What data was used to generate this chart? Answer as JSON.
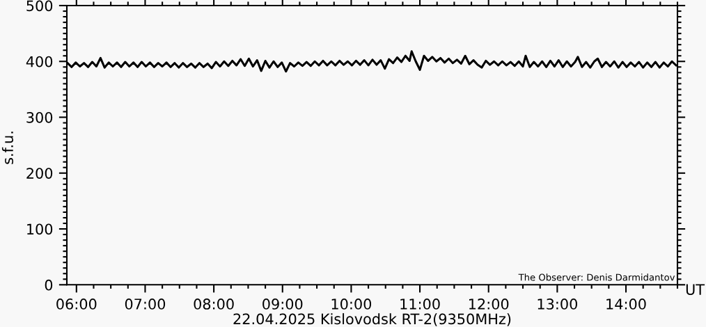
{
  "chart_data": {
    "type": "line",
    "title": "22.04.2025 Kislovodsk RT-2(9350MHz)",
    "xlabel": "UT",
    "ylabel": "s.f.u.",
    "annotations": [
      "The Observer: Denis Darmidantov"
    ],
    "x": [
      5.87,
      5.93,
      5.99,
      6.05,
      6.11,
      6.17,
      6.23,
      6.29,
      6.35,
      6.41,
      6.47,
      6.53,
      6.59,
      6.65,
      6.71,
      6.77,
      6.83,
      6.89,
      6.95,
      7.01,
      7.07,
      7.13,
      7.19,
      7.25,
      7.31,
      7.37,
      7.43,
      7.49,
      7.55,
      7.61,
      7.67,
      7.73,
      7.79,
      7.85,
      7.91,
      7.97,
      8.03,
      8.09,
      8.15,
      8.21,
      8.27,
      8.33,
      8.39,
      8.45,
      8.51,
      8.57,
      8.63,
      8.69,
      8.75,
      8.81,
      8.87,
      8.93,
      8.99,
      9.05,
      9.11,
      9.17,
      9.23,
      9.29,
      9.35,
      9.41,
      9.47,
      9.53,
      9.59,
      9.65,
      9.71,
      9.77,
      9.83,
      9.89,
      9.95,
      10.01,
      10.07,
      10.13,
      10.19,
      10.25,
      10.31,
      10.37,
      10.43,
      10.49,
      10.55,
      10.61,
      10.67,
      10.73,
      10.79,
      10.85,
      10.88,
      10.94,
      11.0,
      11.06,
      11.12,
      11.18,
      11.24,
      11.3,
      11.36,
      11.42,
      11.48,
      11.54,
      11.6,
      11.66,
      11.72,
      11.78,
      11.84,
      11.9,
      11.96,
      12.02,
      12.08,
      12.14,
      12.2,
      12.26,
      12.32,
      12.38,
      12.44,
      12.5,
      12.54,
      12.6,
      12.66,
      12.72,
      12.78,
      12.84,
      12.9,
      12.96,
      13.02,
      13.08,
      13.14,
      13.2,
      13.26,
      13.3,
      13.36,
      13.42,
      13.48,
      13.54,
      13.59,
      13.65,
      13.71,
      13.77,
      13.83,
      13.89,
      13.95,
      14.01,
      14.07,
      14.13,
      14.19,
      14.25,
      14.31,
      14.37,
      14.43,
      14.49,
      14.55,
      14.61,
      14.67,
      14.73
    ],
    "values": [
      397,
      390,
      398,
      391,
      397,
      390,
      399,
      391,
      406,
      389,
      398,
      391,
      398,
      390,
      399,
      391,
      398,
      390,
      399,
      391,
      398,
      390,
      397,
      391,
      398,
      390,
      397,
      389,
      397,
      390,
      396,
      389,
      397,
      390,
      396,
      388,
      399,
      391,
      400,
      392,
      401,
      393,
      404,
      392,
      405,
      391,
      402,
      383,
      401,
      389,
      400,
      390,
      398,
      382,
      397,
      391,
      398,
      392,
      399,
      392,
      400,
      393,
      401,
      393,
      400,
      393,
      401,
      394,
      400,
      393,
      401,
      394,
      402,
      393,
      403,
      394,
      402,
      387,
      404,
      397,
      407,
      399,
      410,
      401,
      418,
      400,
      385,
      410,
      401,
      408,
      400,
      406,
      398,
      405,
      397,
      403,
      396,
      410,
      395,
      402,
      394,
      389,
      401,
      394,
      400,
      393,
      400,
      393,
      399,
      392,
      400,
      391,
      410,
      390,
      399,
      391,
      400,
      390,
      401,
      391,
      402,
      390,
      400,
      391,
      399,
      408,
      390,
      399,
      389,
      400,
      405,
      390,
      399,
      391,
      400,
      389,
      399,
      390,
      398,
      391,
      399,
      389,
      398,
      390,
      399,
      389,
      398,
      391,
      400,
      393
    ],
    "color": "#000000",
    "line_style": "solid",
    "xlim": [
      5.86,
      14.75
    ],
    "xticks": [
      {
        "value": 6,
        "label": "06:00"
      },
      {
        "value": 6.25,
        "label": null
      },
      {
        "value": 6.5,
        "label": null
      },
      {
        "value": 6.75,
        "label": null
      },
      {
        "value": 7,
        "label": "07:00"
      },
      {
        "value": 7.25,
        "label": null
      },
      {
        "value": 7.5,
        "label": null
      },
      {
        "value": 7.75,
        "label": null
      },
      {
        "value": 8,
        "label": "08:00"
      },
      {
        "value": 8.25,
        "label": null
      },
      {
        "value": 8.5,
        "label": null
      },
      {
        "value": 8.75,
        "label": null
      },
      {
        "value": 9,
        "label": "09:00"
      },
      {
        "value": 9.25,
        "label": null
      },
      {
        "value": 9.5,
        "label": null
      },
      {
        "value": 9.75,
        "label": null
      },
      {
        "value": 10,
        "label": "10:00"
      },
      {
        "value": 10.25,
        "label": null
      },
      {
        "value": 10.5,
        "label": null
      },
      {
        "value": 10.75,
        "label": null
      },
      {
        "value": 11,
        "label": "11:00"
      },
      {
        "value": 11.25,
        "label": null
      },
      {
        "value": 11.5,
        "label": null
      },
      {
        "value": 11.75,
        "label": null
      },
      {
        "value": 12,
        "label": "12:00"
      },
      {
        "value": 12.25,
        "label": null
      },
      {
        "value": 12.5,
        "label": null
      },
      {
        "value": 12.75,
        "label": null
      },
      {
        "value": 13,
        "label": "13:00"
      },
      {
        "value": 13.25,
        "label": null
      },
      {
        "value": 13.5,
        "label": null
      },
      {
        "value": 13.75,
        "label": null
      },
      {
        "value": 14,
        "label": "14:00"
      },
      {
        "value": 14.25,
        "label": null
      },
      {
        "value": 14.5,
        "label": null
      },
      {
        "value": 14.75,
        "label": null
      }
    ],
    "ylim": [
      0,
      500
    ],
    "yticks": [
      0,
      {
        "value": 10,
        "label": null
      },
      {
        "value": 20,
        "label": null
      },
      {
        "value": 30,
        "label": null
      },
      {
        "value": 40,
        "label": null
      },
      {
        "value": 50,
        "label": null
      },
      {
        "value": 60,
        "label": null
      },
      {
        "value": 70,
        "label": null
      },
      {
        "value": 80,
        "label": null
      },
      {
        "value": 90,
        "label": null
      },
      100,
      {
        "value": 110,
        "label": null
      },
      {
        "value": 120,
        "label": null
      },
      {
        "value": 130,
        "label": null
      },
      {
        "value": 140,
        "label": null
      },
      {
        "value": 150,
        "label": null
      },
      {
        "value": 160,
        "label": null
      },
      {
        "value": 170,
        "label": null
      },
      {
        "value": 180,
        "label": null
      },
      {
        "value": 190,
        "label": null
      },
      200,
      {
        "value": 210,
        "label": null
      },
      {
        "value": 220,
        "label": null
      },
      {
        "value": 230,
        "label": null
      },
      {
        "value": 240,
        "label": null
      },
      {
        "value": 250,
        "label": null
      },
      {
        "value": 260,
        "label": null
      },
      {
        "value": 270,
        "label": null
      },
      {
        "value": 280,
        "label": null
      },
      {
        "value": 290,
        "label": null
      },
      300,
      {
        "value": 310,
        "label": null
      },
      {
        "value": 320,
        "label": null
      },
      {
        "value": 330,
        "label": null
      },
      {
        "value": 340,
        "label": null
      },
      {
        "value": 350,
        "label": null
      },
      {
        "value": 360,
        "label": null
      },
      {
        "value": 370,
        "label": null
      },
      {
        "value": 380,
        "label": null
      },
      {
        "value": 390,
        "label": null
      },
      400,
      {
        "value": 410,
        "label": null
      },
      {
        "value": 420,
        "label": null
      },
      {
        "value": 430,
        "label": null
      },
      {
        "value": 440,
        "label": null
      },
      {
        "value": 450,
        "label": null
      },
      {
        "value": 460,
        "label": null
      },
      {
        "value": 470,
        "label": null
      },
      {
        "value": 480,
        "label": null
      },
      {
        "value": 490,
        "label": null
      },
      500
    ]
  }
}
